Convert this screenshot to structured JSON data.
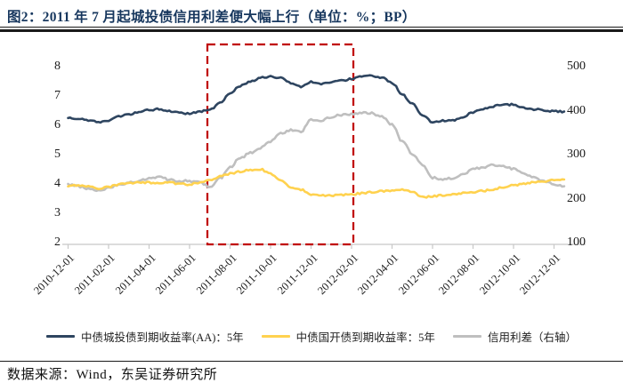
{
  "figure": {
    "title": "图2：2011 年 7 月起城投债信用利差便大幅上行（单位：%；BP）",
    "source": "数据来源：Wind，东吴证券研究所"
  },
  "colors": {
    "title_text": "#17375E",
    "rule": "#1a1a1a",
    "navy_series": "#2E4560",
    "yellow_series": "#FFD24F",
    "gray_series": "#BFBFBF",
    "highlight_box": "#C00000",
    "axis_line": "#C8C8C8",
    "tick_text": "#1a1a1a"
  },
  "chart_data": {
    "type": "line",
    "title": "2011 年 7 月起城投债信用利差便大幅上行",
    "units": "%；BP",
    "x_tick_labels": [
      "2010-12-01",
      "2011-02-01",
      "2011-04-01",
      "2011-06-01",
      "2011-08-01",
      "2011-10-01",
      "2011-12-01",
      "2012-02-01",
      "2012-04-01",
      "2012-06-01",
      "2012-08-01",
      "2012-10-01",
      "2012-12-01"
    ],
    "left_axis": {
      "ticks": [
        8,
        7,
        6,
        5,
        4,
        3,
        2
      ],
      "min": 2,
      "max": 8,
      "unit": "%"
    },
    "right_axis": {
      "ticks": [
        500,
        400,
        300,
        200,
        100
      ],
      "min": 100,
      "max": 500,
      "unit": "BP"
    },
    "grid": false,
    "legend_position": "bottom",
    "sampling": "t = months since 2010-12-01, step 0.5 (semi-monthly readings)",
    "series": [
      {
        "name": "中债城投债到期收益率(AA)：5年",
        "axis": "left",
        "color_key": "navy_series",
        "values": [
          6.25,
          6.22,
          6.18,
          6.1,
          6.15,
          6.3,
          6.38,
          6.45,
          6.52,
          6.55,
          6.48,
          6.42,
          6.4,
          6.47,
          6.52,
          6.75,
          7.1,
          7.35,
          7.5,
          7.62,
          7.66,
          7.63,
          7.45,
          7.32,
          7.48,
          7.4,
          7.48,
          7.52,
          7.58,
          7.68,
          7.7,
          7.62,
          7.45,
          7.05,
          6.75,
          6.35,
          6.12,
          6.15,
          6.18,
          6.28,
          6.45,
          6.55,
          6.65,
          6.72,
          6.7,
          6.6,
          6.55,
          6.5,
          6.48,
          6.47
        ]
      },
      {
        "name": "中债国开债到期收益率：5年",
        "axis": "left",
        "color_key": "yellow_series",
        "values": [
          3.92,
          3.95,
          3.93,
          3.85,
          3.9,
          3.98,
          4.02,
          4.05,
          4.05,
          4.02,
          4.05,
          4.0,
          3.98,
          4.05,
          4.15,
          4.25,
          4.35,
          4.42,
          4.48,
          4.5,
          4.35,
          4.12,
          3.9,
          3.8,
          3.65,
          3.6,
          3.6,
          3.62,
          3.65,
          3.68,
          3.72,
          3.75,
          3.78,
          3.8,
          3.75,
          3.55,
          3.58,
          3.62,
          3.65,
          3.68,
          3.72,
          3.76,
          3.82,
          3.88,
          3.95,
          4.0,
          4.05,
          4.08,
          4.12,
          4.15
        ]
      },
      {
        "name": "信用利差（右轴）",
        "axis": "right",
        "color_key": "gray_series",
        "values": [
          232,
          228,
          222,
          218,
          224,
          232,
          236,
          240,
          246,
          250,
          243,
          240,
          240,
          238,
          226,
          246,
          272,
          292,
          304,
          315,
          330,
          348,
          356,
          352,
          380,
          378,
          386,
          390,
          392,
          396,
          394,
          386,
          368,
          330,
          302,
          278,
          248,
          244,
          246,
          256,
          266,
          272,
          276,
          274,
          268,
          256,
          248,
          240,
          232,
          228
        ]
      }
    ],
    "annotation_box": {
      "description": "red dashed highlight from 2011-07 to 2012-02",
      "t_from": 6.88,
      "t_to": 14.09
    }
  }
}
